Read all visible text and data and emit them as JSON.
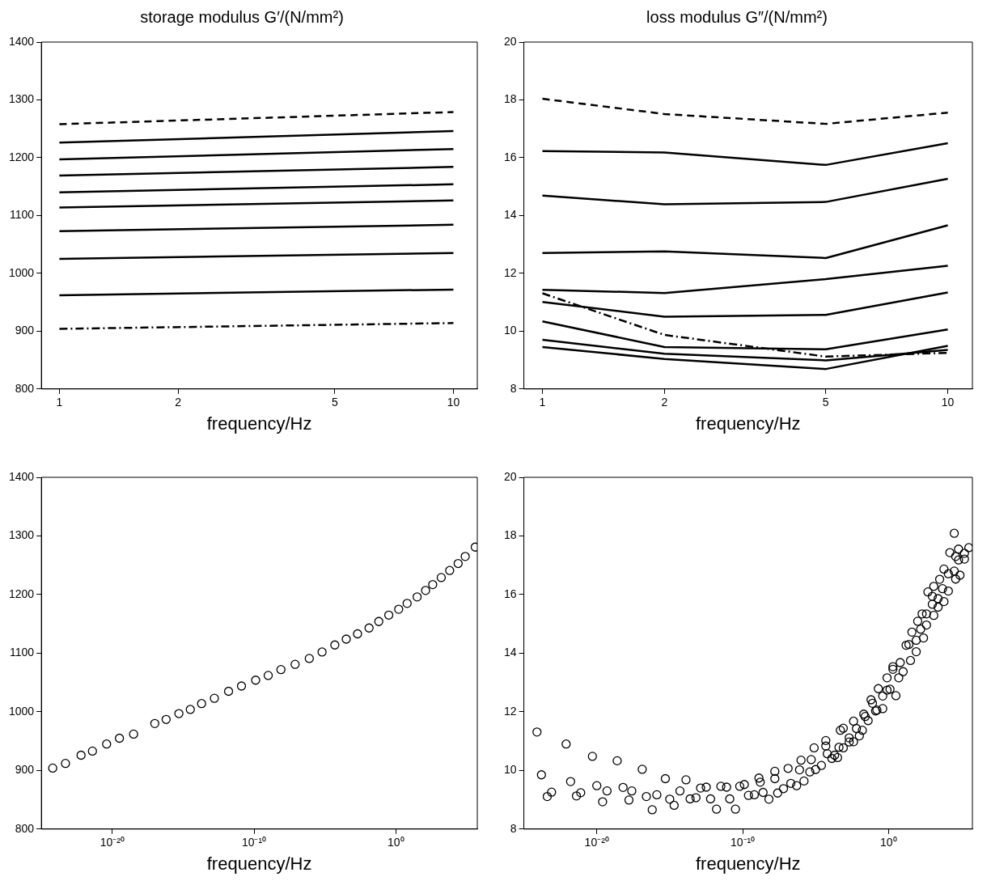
{
  "chart_data": [
    {
      "type": "line",
      "title": "storage modulus G′/(N/mm²)",
      "xlabel": "frequency/Hz",
      "log": "x",
      "xlim": [
        0.9,
        11.5
      ],
      "xticks": [
        1,
        2,
        5,
        10
      ],
      "ylim": [
        800,
        1400
      ],
      "yticks": [
        800,
        900,
        1000,
        1100,
        1200,
        1300,
        1400
      ],
      "series": [
        {
          "color": "#000000",
          "line_style": "dashed",
          "x": [
            1,
            10
          ],
          "values": [
            1258,
            1279
          ]
        },
        {
          "color": "#000000",
          "line_style": "solid",
          "x": [
            1,
            10
          ],
          "values": [
            1226,
            1246
          ]
        },
        {
          "color": "#000000",
          "line_style": "solid",
          "x": [
            1,
            10
          ],
          "values": [
            1197,
            1215
          ]
        },
        {
          "color": "#000000",
          "line_style": "solid",
          "x": [
            1,
            10
          ],
          "values": [
            1169,
            1184
          ]
        },
        {
          "color": "#000000",
          "line_style": "solid",
          "x": [
            1,
            10
          ],
          "values": [
            1140,
            1154
          ]
        },
        {
          "color": "#000000",
          "line_style": "solid",
          "x": [
            1,
            10
          ],
          "values": [
            1114,
            1126
          ]
        },
        {
          "color": "#000000",
          "line_style": "solid",
          "x": [
            1,
            10
          ],
          "values": [
            1073,
            1084
          ]
        },
        {
          "color": "#000000",
          "line_style": "solid",
          "x": [
            1,
            10
          ],
          "values": [
            1025,
            1035
          ]
        },
        {
          "color": "#000000",
          "line_style": "solid",
          "x": [
            1,
            10
          ],
          "values": [
            962,
            972
          ]
        },
        {
          "color": "#000000",
          "line_style": "dashdot",
          "x": [
            1,
            10
          ],
          "values": [
            904,
            914
          ]
        }
      ]
    },
    {
      "type": "line",
      "title": "loss modulus G″/(N/mm²)",
      "xlabel": "frequency/Hz",
      "log": "x",
      "xlim": [
        0.9,
        11.5
      ],
      "xticks": [
        1,
        2,
        5,
        10
      ],
      "ylim": [
        8,
        20
      ],
      "yticks": [
        8,
        10,
        12,
        14,
        16,
        18,
        20
      ],
      "x": [
        1,
        2,
        5,
        10
      ],
      "series": [
        {
          "color": "#000000",
          "line_style": "dashed",
          "values": [
            18.04,
            17.51,
            17.17,
            17.56
          ]
        },
        {
          "color": "#000000",
          "line_style": "solid",
          "values": [
            16.23,
            16.18,
            15.75,
            16.5
          ]
        },
        {
          "color": "#000000",
          "line_style": "solid",
          "values": [
            14.69,
            14.39,
            14.47,
            15.27
          ]
        },
        {
          "color": "#000000",
          "line_style": "solid",
          "values": [
            12.7,
            12.76,
            12.53,
            13.66
          ]
        },
        {
          "color": "#000000",
          "line_style": "solid",
          "values": [
            11.43,
            11.32,
            11.8,
            12.26
          ]
        },
        {
          "color": "#000000",
          "line_style": "solid",
          "values": [
            11.01,
            10.5,
            10.56,
            11.34
          ]
        },
        {
          "color": "#000000",
          "line_style": "solid",
          "values": [
            10.34,
            9.45,
            9.37,
            10.06
          ]
        },
        {
          "color": "#000000",
          "line_style": "solid",
          "values": [
            9.7,
            9.22,
            8.99,
            9.35
          ]
        },
        {
          "color": "#000000",
          "line_style": "solid",
          "values": [
            9.45,
            9.04,
            8.69,
            9.49
          ]
        },
        {
          "color": "#000000",
          "line_style": "dashdot",
          "values": [
            11.31,
            9.87,
            9.12,
            9.25
          ]
        }
      ]
    },
    {
      "type": "scatter",
      "xlabel": "frequency/Hz",
      "log": "x",
      "marker": "circle",
      "xlim": [
        1e-25,
        560000
      ],
      "xticks": [
        {
          "value": 1e-20,
          "label": "10⁻²⁰"
        },
        {
          "value": 1e-10,
          "label": "10⁻¹⁰"
        },
        {
          "value": 1,
          "label": "10⁰"
        }
      ],
      "ylim": [
        800,
        1400
      ],
      "yticks": [
        800,
        900,
        1000,
        1100,
        1200,
        1300,
        1400
      ],
      "series": [
        {
          "color": "#000000",
          "x": [
            6.3e-25,
            5e-24,
            6.3e-23,
            4e-22,
            4e-21,
            3.2e-20,
            3.2e-19,
            1e-17,
            6.3e-17,
            5e-16,
            3.2e-15,
            2e-14,
            1.6e-13,
            1.6e-12,
            1.3e-11,
            1.3e-10,
            1e-09,
            7.9e-09,
            7.9e-08,
            7.9e-07,
            6.3e-06,
            5e-05,
            0.00032,
            0.002,
            0.013,
            0.063,
            0.32,
            1.6,
            6.3,
            32,
            126,
            400,
            1600,
            6300,
            25000,
            79000,
            400000
          ],
          "values": [
            904,
            912,
            926,
            933,
            945,
            955,
            962,
            980,
            987,
            997,
            1004,
            1014,
            1023,
            1035,
            1044,
            1054,
            1062,
            1072,
            1081,
            1091,
            1102,
            1114,
            1124,
            1133,
            1143,
            1154,
            1165,
            1175,
            1185,
            1196,
            1207,
            1217,
            1229,
            1241,
            1253,
            1265,
            1281
          ]
        }
      ]
    },
    {
      "type": "scatter",
      "xlabel": "frequency/Hz",
      "log": "x",
      "marker": "circle",
      "xlim": [
        1e-25,
        560000
      ],
      "xticks": [
        {
          "value": 1e-20,
          "label": "10⁻²⁰"
        },
        {
          "value": 1e-10,
          "label": "10⁻¹⁰"
        },
        {
          "value": 1,
          "label": "10⁰"
        }
      ],
      "ylim": [
        8,
        20
      ],
      "yticks": [
        8,
        10,
        12,
        14,
        16,
        18,
        20
      ],
      "series": [
        {
          "color": "#000000",
          "x": [
            7.9e-25,
            1.6e-24,
            4e-24,
            7.9e-24,
            7.9e-23,
            1.6e-22,
            4e-22,
            7.9e-22,
            5e-21,
            1e-20,
            2.5e-20,
            5e-20,
            2.5e-19,
            6.3e-19,
            1.6e-18,
            2.5e-18,
            1.3e-17,
            2.5e-17,
            6.3e-17,
            1.3e-16,
            5e-16,
            1e-15,
            2e-15,
            5e-15,
            1.3e-14,
            2.5e-14,
            6.3e-14,
            1.3e-13,
            3.2e-13,
            6.3e-13,
            1.6e-12,
            3.2e-12,
            7.9e-12,
            1.3e-11,
            3.2e-11,
            6.3e-11,
            1.3e-10,
            2.5e-10,
            6.3e-10,
            1.3e-09,
            1.6e-09,
            2.5e-09,
            6.3e-09,
            1.6e-08,
            1.6e-08,
            2.5e-08,
            6.3e-08,
            1.3e-07,
            2e-07,
            5e-07,
            7.9e-07,
            1e-06,
            1.6e-06,
            4e-06,
            5e-06,
            7.9e-06,
            1e-05,
            2.5e-05,
            5e-05,
            5e-05,
            6.3e-05,
            0.00013,
            0.0002,
            0.00032,
            0.0004,
            0.0005,
            0.00079,
            0.00079,
            0.002,
            0.002,
            0.004,
            0.004,
            0.0063,
            0.01,
            0.016,
            0.02,
            0.025,
            0.04,
            0.063,
            0.079,
            0.13,
            0.16,
            0.2,
            0.4,
            0.4,
            0.79,
            0.79,
            1.26,
            2,
            2,
            3.2,
            5,
            6.3,
            10,
            16,
            25,
            32,
            40,
            79,
            79,
            100,
            160,
            200,
            250,
            400,
            400,
            500,
            1000,
            1000,
            1260,
            1260,
            2500,
            2500,
            3200,
            5000,
            6300,
            6300,
            12600,
            12600,
            16000,
            32000,
            32000,
            40000,
            40000,
            63000,
            79000,
            63000,
            160000,
            160000,
            320000
          ],
          "values": [
            11.31,
            9.85,
            9.11,
            9.26,
            10.9,
            9.62,
            9.13,
            9.24,
            10.48,
            9.48,
            8.93,
            9.3,
            10.33,
            9.42,
            8.99,
            9.3,
            10.04,
            9.11,
            8.66,
            9.17,
            9.72,
            9.02,
            8.81,
            9.3,
            9.68,
            9.03,
            9.07,
            9.4,
            9.43,
            9.03,
            8.68,
            9.46,
            9.43,
            9.03,
            8.68,
            9.46,
            9.52,
            9.15,
            9.17,
            9.74,
            9.6,
            9.25,
            9.02,
            9.97,
            9.72,
            9.23,
            9.38,
            10.07,
            9.56,
            9.48,
            10.02,
            10.35,
            9.64,
            9.95,
            10.37,
            10.77,
            10.03,
            10.17,
            11.02,
            10.83,
            10.57,
            10.41,
            10.52,
            10.44,
            10.79,
            11.37,
            11.44,
            10.77,
            11.11,
            10.97,
            10.98,
            11.68,
            11.43,
            11.18,
            11.37,
            11.92,
            11.84,
            11.7,
            12.41,
            12.29,
            12.03,
            12.06,
            12.79,
            12.11,
            12.54,
            12.74,
            13.16,
            12.77,
            13.54,
            13.45,
            12.55,
            13.16,
            13.68,
            13.37,
            14.27,
            14.3,
            13.75,
            14.72,
            14.44,
            14.05,
            15.09,
            14.82,
            15.34,
            14.52,
            15.34,
            14.96,
            16.09,
            15.67,
            15.94,
            16.28,
            15.29,
            15.57,
            15.86,
            16.52,
            16.2,
            15.76,
            16.87,
            16.12,
            16.71,
            17.43,
            16.8,
            18.09,
            16.53,
            17.3,
            17.55,
            16.66,
            17.18,
            17.21,
            17.41,
            17.6
          ]
        }
      ]
    }
  ]
}
